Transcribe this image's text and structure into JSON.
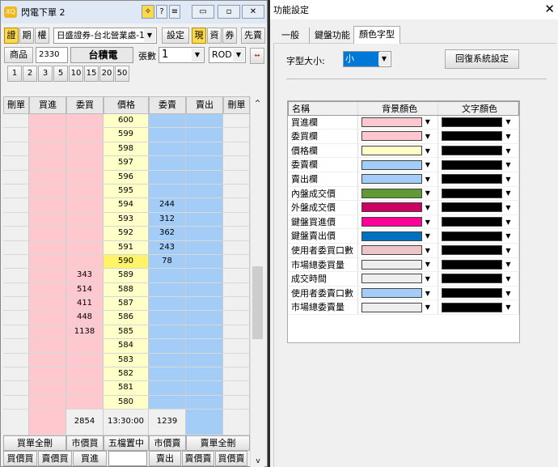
{
  "window": {
    "title": "閃電下單 2",
    "logo": "XQ",
    "pin_icon": "pin-icon",
    "help": "?",
    "menu_icon": "list-icon"
  },
  "toolbar": {
    "tabs": [
      "證",
      "期",
      "權"
    ],
    "account": "日盛證券-台北營業處-1",
    "settings": "設定",
    "modes": [
      "現",
      "資",
      "券"
    ],
    "sell_first": "先賣"
  },
  "order": {
    "product_label": "商品",
    "product_code": "2330",
    "product_name": "台積電",
    "qty_label": "張數",
    "qty": "1",
    "type": "ROD"
  },
  "qty_presets": [
    "1",
    "2",
    "3",
    "5",
    "10",
    "15",
    "20",
    "50"
  ],
  "grid": {
    "headers": [
      "刪單",
      "買進",
      "委買",
      "價格",
      "委賣",
      "賣出",
      "刪單"
    ],
    "rows": [
      {
        "price": "600",
        "bid": "",
        "ask": ""
      },
      {
        "price": "599",
        "bid": "",
        "ask": ""
      },
      {
        "price": "598",
        "bid": "",
        "ask": ""
      },
      {
        "price": "597",
        "bid": "",
        "ask": ""
      },
      {
        "price": "596",
        "bid": "",
        "ask": ""
      },
      {
        "price": "595",
        "bid": "",
        "ask": ""
      },
      {
        "price": "594",
        "bid": "",
        "ask": "244"
      },
      {
        "price": "593",
        "bid": "",
        "ask": "312"
      },
      {
        "price": "592",
        "bid": "",
        "ask": "362"
      },
      {
        "price": "591",
        "bid": "",
        "ask": "243"
      },
      {
        "price": "590",
        "bid": "",
        "ask": "78",
        "last": true
      },
      {
        "price": "589",
        "bid": "343",
        "ask": ""
      },
      {
        "price": "588",
        "bid": "514",
        "ask": ""
      },
      {
        "price": "587",
        "bid": "411",
        "ask": ""
      },
      {
        "price": "586",
        "bid": "448",
        "ask": ""
      },
      {
        "price": "585",
        "bid": "1138",
        "ask": ""
      },
      {
        "price": "584",
        "bid": "",
        "ask": ""
      },
      {
        "price": "583",
        "bid": "",
        "ask": ""
      },
      {
        "price": "582",
        "bid": "",
        "ask": ""
      },
      {
        "price": "581",
        "bid": "",
        "ask": ""
      },
      {
        "price": "580",
        "bid": "",
        "ask": ""
      }
    ],
    "summary": {
      "bid_total": "2854",
      "time": "13:30:00",
      "ask_total": "1239"
    }
  },
  "bottom": {
    "row1": [
      "買單全刪",
      "市價買",
      "五檔置中",
      "市價賣",
      "賣單全刪"
    ],
    "row2_left": [
      "買價買",
      "賣價買",
      "買進"
    ],
    "row2_right": [
      "賣出",
      "賣價賣",
      "買價賣"
    ]
  },
  "dialog": {
    "title": "功能設定",
    "tabs": [
      "一般",
      "鍵盤功能",
      "顏色字型"
    ],
    "active_tab": "顏色字型",
    "font_size_label": "字型大小:",
    "font_size": "小",
    "reset": "回復系統設定",
    "headers": [
      "名稱",
      "背景顏色",
      "文字顏色"
    ],
    "items": [
      {
        "name": "買進欄",
        "bg": "#ffc8cf",
        "fg": "#000000"
      },
      {
        "name": "委買欄",
        "bg": "#ffc8cf",
        "fg": "#000000"
      },
      {
        "name": "價格欄",
        "bg": "#ffffc8",
        "fg": "#000000"
      },
      {
        "name": "委賣欄",
        "bg": "#a3ccf7",
        "fg": "#000000"
      },
      {
        "name": "賣出欄",
        "bg": "#a3ccf7",
        "fg": "#000000"
      },
      {
        "name": "內盤成交價",
        "bg": "#5f9a32",
        "fg": "#000000"
      },
      {
        "name": "外盤成交價",
        "bg": "#cc0063",
        "fg": "#000000"
      },
      {
        "name": "鍵盤買進價",
        "bg": "#ff0099",
        "fg": "#000000"
      },
      {
        "name": "鍵盤賣出價",
        "bg": "#0070c0",
        "fg": "#000000"
      },
      {
        "name": "使用者委買口數",
        "bg": "#efc4c8",
        "fg": "#000000"
      },
      {
        "name": "市場總委買量",
        "bg": "#eeeeee",
        "fg": "#000000"
      },
      {
        "name": "成交時間",
        "bg": "#eeeeee",
        "fg": "#000000"
      },
      {
        "name": "使用者委賣口數",
        "bg": "#a3ccf7",
        "fg": "#000000"
      },
      {
        "name": "市場總委賣量",
        "bg": "#eeeeee",
        "fg": "#000000"
      }
    ]
  }
}
